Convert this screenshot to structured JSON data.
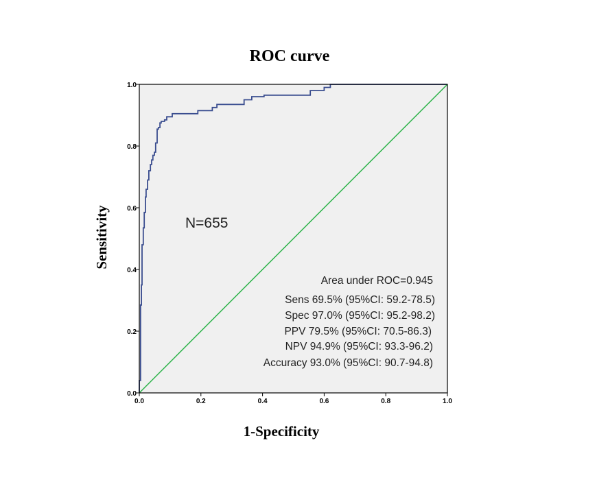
{
  "chart_data": {
    "type": "line",
    "title": "ROC curve",
    "xlabel": "1-Specificity",
    "ylabel": "Sensitivity",
    "xlim": [
      0,
      1
    ],
    "ylim": [
      0,
      1
    ],
    "xticks": [
      "0.0",
      "0.2",
      "0.4",
      "0.6",
      "0.8",
      "1.0"
    ],
    "yticks": [
      "0.0",
      "0.2",
      "0.4",
      "0.6",
      "0.8",
      "1.0"
    ],
    "grid": false,
    "plot_background": "#f0f0f0",
    "series": [
      {
        "color": "#3a4d8f",
        "x": [
          0.0,
          0.0,
          0.004,
          0.004,
          0.007,
          0.007,
          0.009,
          0.009,
          0.013,
          0.013,
          0.016,
          0.016,
          0.02,
          0.02,
          0.022,
          0.022,
          0.027,
          0.027,
          0.031,
          0.031,
          0.036,
          0.036,
          0.04,
          0.04,
          0.044,
          0.044,
          0.049,
          0.049,
          0.053,
          0.053,
          0.058,
          0.058,
          0.062,
          0.062,
          0.067,
          0.067,
          0.071,
          0.071,
          0.076,
          0.076,
          0.082,
          0.082,
          0.089,
          0.089,
          0.098,
          0.098,
          0.107,
          0.107,
          0.132,
          0.132,
          0.19,
          0.19,
          0.237,
          0.237,
          0.252,
          0.252,
          0.34,
          0.34,
          0.365,
          0.365,
          0.405,
          0.405,
          0.555,
          0.555,
          0.6,
          0.6,
          0.62,
          0.62,
          1.0
        ],
        "y": [
          0.0,
          0.04,
          0.04,
          0.285,
          0.285,
          0.35,
          0.35,
          0.48,
          0.48,
          0.535,
          0.535,
          0.585,
          0.585,
          0.635,
          0.635,
          0.66,
          0.66,
          0.69,
          0.69,
          0.72,
          0.72,
          0.74,
          0.74,
          0.755,
          0.755,
          0.77,
          0.77,
          0.78,
          0.78,
          0.81,
          0.81,
          0.855,
          0.855,
          0.86,
          0.86,
          0.875,
          0.875,
          0.88,
          0.88,
          0.88,
          0.88,
          0.885,
          0.885,
          0.895,
          0.895,
          0.895,
          0.895,
          0.905,
          0.905,
          0.905,
          0.905,
          0.915,
          0.915,
          0.925,
          0.925,
          0.935,
          0.935,
          0.95,
          0.95,
          0.96,
          0.96,
          0.965,
          0.965,
          0.98,
          0.98,
          0.99,
          0.99,
          1.0,
          1.0
        ]
      },
      {
        "color": "#2db34a",
        "x": [
          0,
          1
        ],
        "y": [
          0,
          1
        ]
      }
    ],
    "annotations": {
      "n": "N=655",
      "auc": "Area under ROC=0.945",
      "sens": "Sens 69.5% (95%CI: 59.2-78.5)",
      "spec": "Spec 97.0% (95%CI: 95.2-98.2)",
      "ppv": "PPV 79.5% (95%CI: 70.5-86.3)",
      "npv": "NPV 94.9% (95%CI: 93.3-96.2)",
      "accuracy": "Accuracy 93.0% (95%CI: 90.7-94.8)"
    }
  }
}
